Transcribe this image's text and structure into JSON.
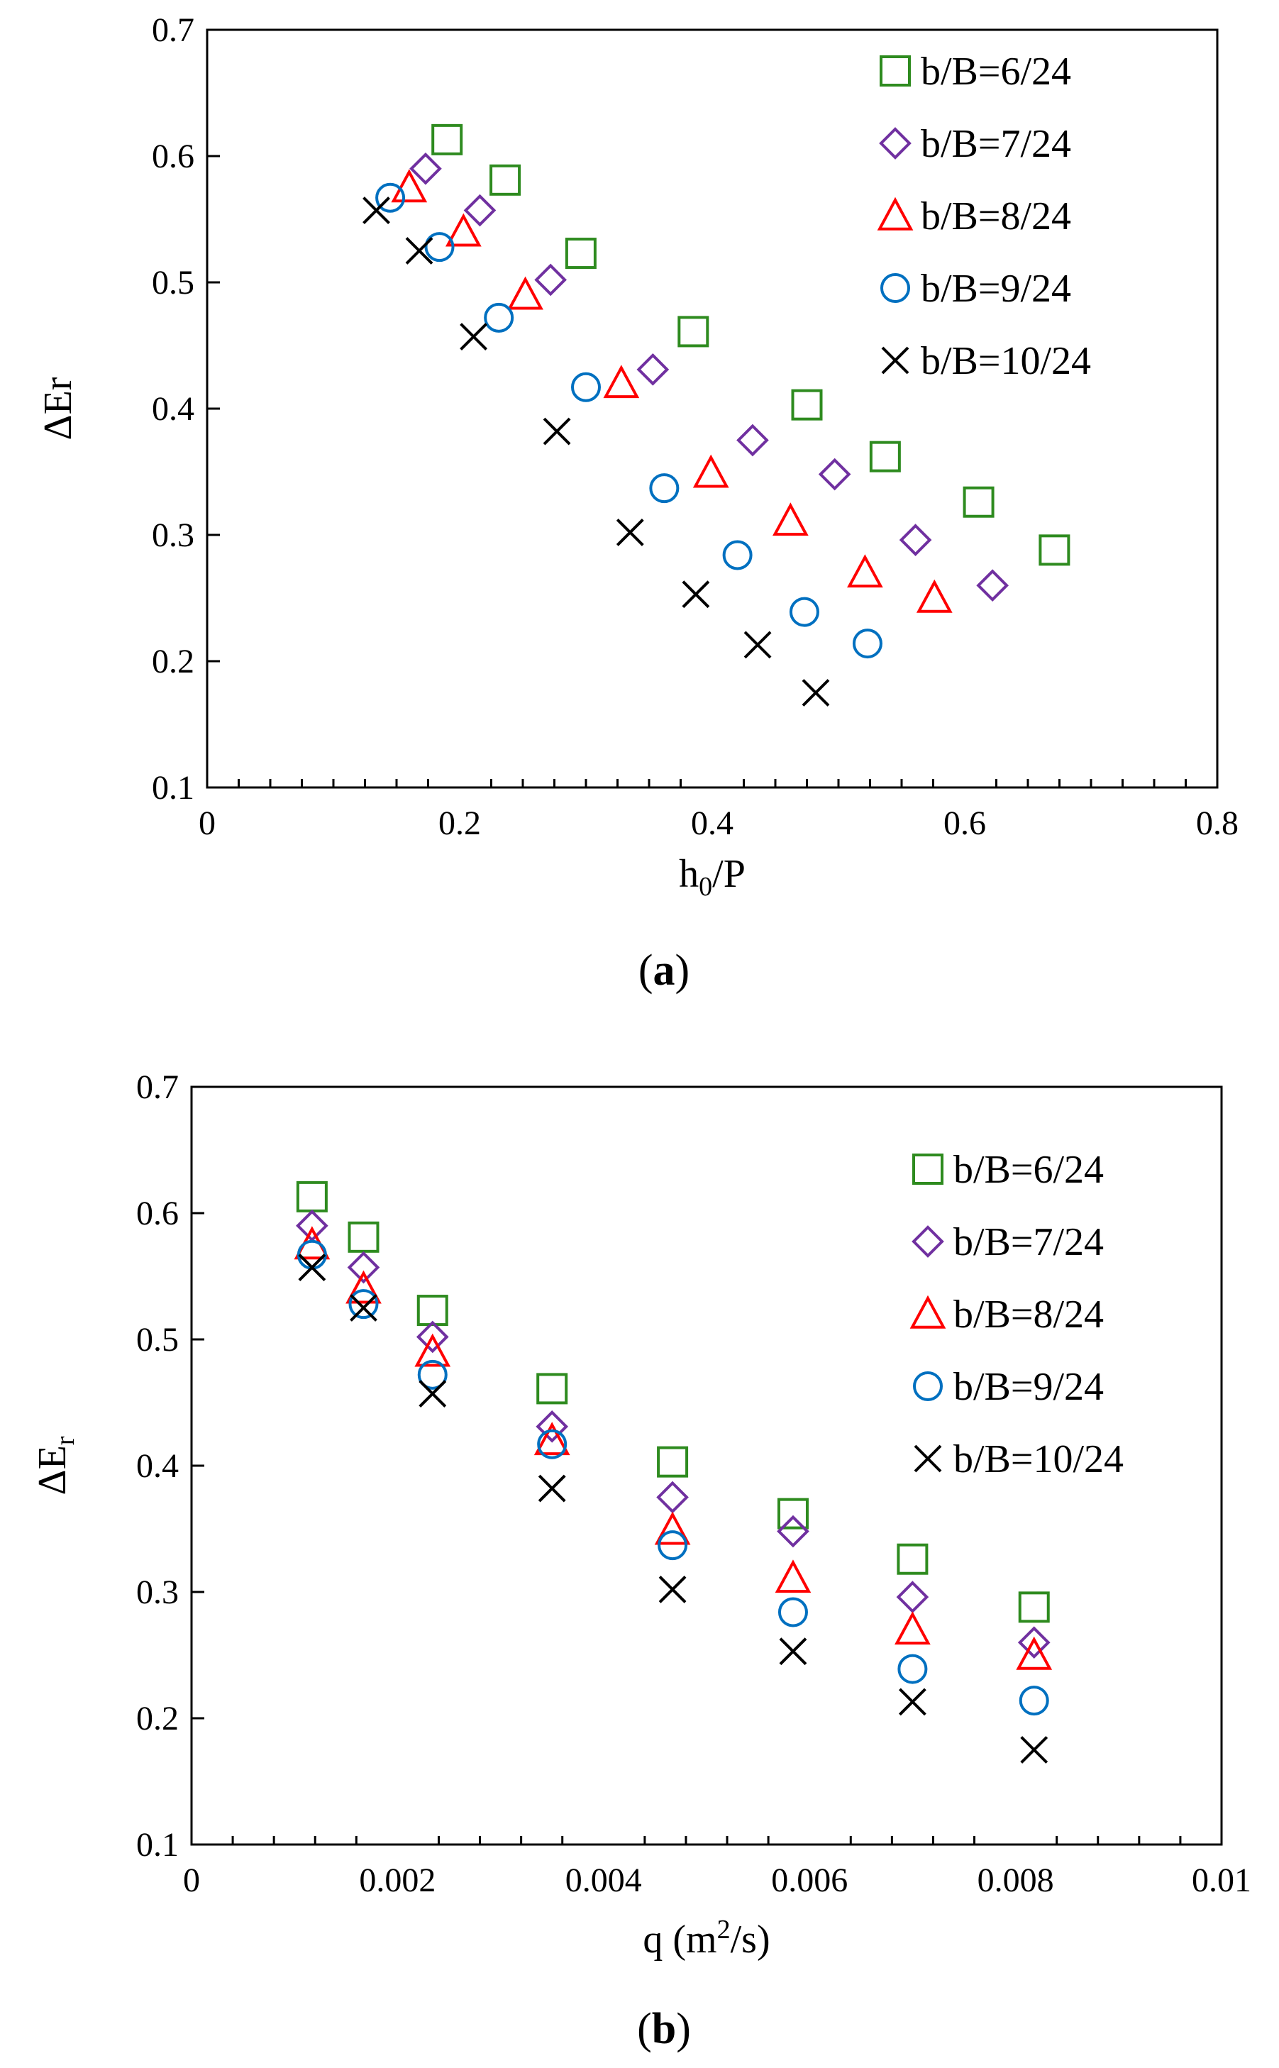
{
  "colors": {
    "s6": "#2e8b1f",
    "s7": "#7030a0",
    "s8": "#ff0000",
    "s9": "#0070c0",
    "s10": "#000000"
  },
  "chart_data": [
    {
      "type": "scatter",
      "panel": "(a)",
      "panel_open": "(",
      "panel_letter": "a",
      "panel_close": ")",
      "xlabel": "h0/P",
      "xlabel_main": "h",
      "xlabel_sub": "0",
      "xlabel_tail": "/P",
      "ylabel": "ΔEr",
      "xlim": [
        0,
        0.8
      ],
      "ylim": [
        0.1,
        0.7
      ],
      "xticks": [
        0,
        0.2,
        0.4,
        0.6,
        0.8
      ],
      "xtick_labels": [
        "0",
        "0.2",
        "0.4",
        "0.6",
        "0.8"
      ],
      "yticks": [
        0.1,
        0.2,
        0.3,
        0.4,
        0.5,
        0.6,
        0.7
      ],
      "ytick_labels": [
        "0.1",
        "0.2",
        "0.3",
        "0.4",
        "0.5",
        "0.6",
        "0.7"
      ],
      "legend_position": "top-right",
      "series": [
        {
          "name": "b/B=6/24",
          "marker": "square",
          "color_key": "s6",
          "x": [
            0.19,
            0.236,
            0.296,
            0.385,
            0.475,
            0.537,
            0.611,
            0.671
          ],
          "y": [
            0.613,
            0.581,
            0.523,
            0.461,
            0.403,
            0.362,
            0.326,
            0.288
          ]
        },
        {
          "name": "b/B=7/24",
          "marker": "diamond",
          "color_key": "s7",
          "x": [
            0.173,
            0.216,
            0.272,
            0.353,
            0.432,
            0.497,
            0.561,
            0.622
          ],
          "y": [
            0.59,
            0.557,
            0.502,
            0.431,
            0.375,
            0.348,
            0.296,
            0.26
          ]
        },
        {
          "name": "b/B=8/24",
          "marker": "triangle",
          "color_key": "s8",
          "x": [
            0.16,
            0.203,
            0.252,
            0.328,
            0.399,
            0.462,
            0.521,
            0.576
          ],
          "y": [
            0.575,
            0.54,
            0.49,
            0.42,
            0.349,
            0.311,
            0.27,
            0.25
          ]
        },
        {
          "name": "b/B=9/24",
          "marker": "circle",
          "color_key": "s9",
          "x": [
            0.145,
            0.184,
            0.231,
            0.3,
            0.362,
            0.42,
            0.473,
            0.523
          ],
          "y": [
            0.567,
            0.528,
            0.472,
            0.417,
            0.337,
            0.284,
            0.239,
            0.214
          ]
        },
        {
          "name": "b/B=10/24",
          "marker": "cross",
          "color_key": "s10",
          "x": [
            0.134,
            0.168,
            0.211,
            0.277,
            0.335,
            0.387,
            0.436,
            0.482
          ],
          "y": [
            0.557,
            0.525,
            0.457,
            0.382,
            0.302,
            0.253,
            0.213,
            0.175
          ]
        }
      ]
    },
    {
      "type": "scatter",
      "panel": "(b)",
      "panel_open": "(",
      "panel_letter": "b",
      "panel_close": ")",
      "xlabel": "q (m2/s)",
      "xlabel_main": "q (m",
      "xlabel_sup": "2",
      "xlabel_tail": "/s)",
      "ylabel": "ΔEr",
      "ylabel_main": "ΔE",
      "ylabel_sub": "r",
      "xlim": [
        0,
        0.01
      ],
      "ylim": [
        0.1,
        0.7
      ],
      "xticks": [
        0,
        0.002,
        0.004,
        0.006,
        0.008,
        0.01
      ],
      "xtick_labels": [
        "0",
        "0.002",
        "0.004",
        "0.006",
        "0.008",
        "0.01"
      ],
      "yticks": [
        0.1,
        0.2,
        0.3,
        0.4,
        0.5,
        0.6,
        0.7
      ],
      "ytick_labels": [
        "0.1",
        "0.2",
        "0.3",
        "0.4",
        "0.5",
        "0.6",
        "0.7"
      ],
      "legend_position": "top-right",
      "series": [
        {
          "name": "b/B=6/24",
          "marker": "square",
          "color_key": "s6",
          "x": [
            0.00117,
            0.00167,
            0.00234,
            0.0035,
            0.00467,
            0.00584,
            0.007,
            0.00818
          ],
          "y": [
            0.613,
            0.581,
            0.523,
            0.461,
            0.403,
            0.362,
            0.326,
            0.288
          ]
        },
        {
          "name": "b/B=7/24",
          "marker": "diamond",
          "color_key": "s7",
          "x": [
            0.00117,
            0.00167,
            0.00234,
            0.0035,
            0.00467,
            0.00584,
            0.007,
            0.00818
          ],
          "y": [
            0.59,
            0.557,
            0.502,
            0.431,
            0.375,
            0.348,
            0.296,
            0.26
          ]
        },
        {
          "name": "b/B=8/24",
          "marker": "triangle",
          "color_key": "s8",
          "x": [
            0.00117,
            0.00167,
            0.00234,
            0.0035,
            0.00467,
            0.00584,
            0.007,
            0.00818
          ],
          "y": [
            0.575,
            0.54,
            0.49,
            0.42,
            0.349,
            0.311,
            0.27,
            0.25
          ]
        },
        {
          "name": "b/B=9/24",
          "marker": "circle",
          "color_key": "s9",
          "x": [
            0.00117,
            0.00167,
            0.00234,
            0.0035,
            0.00467,
            0.00584,
            0.007,
            0.00818
          ],
          "y": [
            0.567,
            0.528,
            0.472,
            0.417,
            0.337,
            0.284,
            0.239,
            0.214
          ]
        },
        {
          "name": "b/B=10/24",
          "marker": "cross",
          "color_key": "s10",
          "x": [
            0.00117,
            0.00167,
            0.00234,
            0.0035,
            0.00467,
            0.00584,
            0.007,
            0.00818
          ],
          "y": [
            0.557,
            0.525,
            0.457,
            0.382,
            0.302,
            0.253,
            0.213,
            0.175
          ]
        }
      ]
    }
  ]
}
